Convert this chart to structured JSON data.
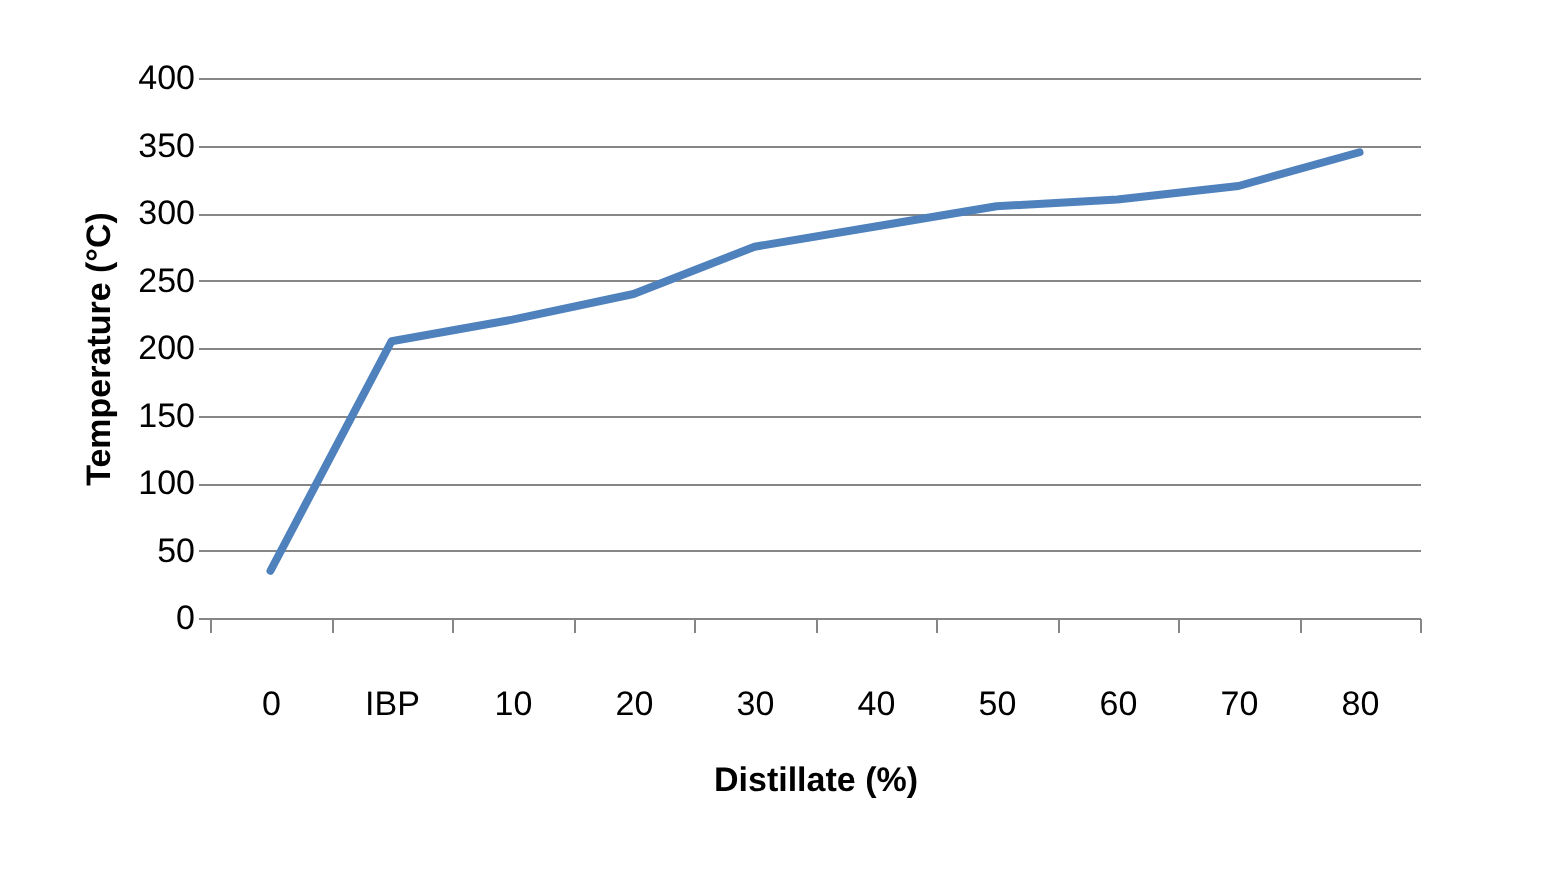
{
  "chart_data": {
    "type": "line",
    "xlabel": "Distillate (%)",
    "ylabel": "Temperature (°C)",
    "categories": [
      "0",
      "IBP",
      "10",
      "20",
      "30",
      "40",
      "50",
      "60",
      "70",
      "80"
    ],
    "series": [
      {
        "color": "#4f81bd",
        "values": [
          35,
          205,
          221,
          240,
          275,
          290,
          305,
          310,
          320,
          345
        ]
      }
    ],
    "ylim": [
      0,
      400
    ],
    "yticks": [
      0,
      50,
      100,
      150,
      200,
      250,
      300,
      350,
      400
    ],
    "grid": "y",
    "marker": "none",
    "line_style": "solid"
  }
}
